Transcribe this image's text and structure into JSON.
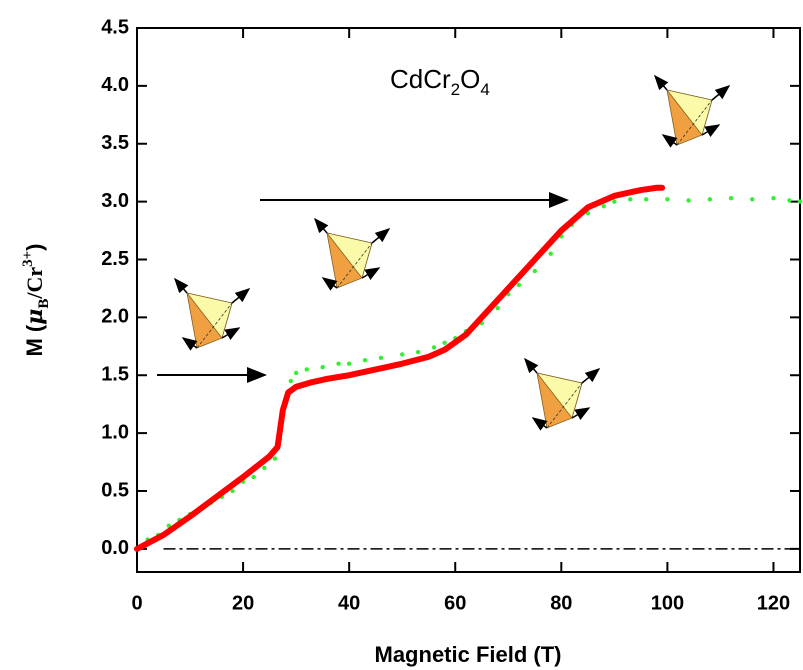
{
  "chart_data": {
    "type": "line",
    "annotation": {
      "parts": [
        "CdCr",
        "2",
        "O",
        "4"
      ]
    },
    "xlabel": "Magnetic Field (T)",
    "ylabel": {
      "parts": [
        "M (",
        "μ",
        "B",
        "/Cr",
        "3+",
        ")"
      ]
    },
    "xlim": [
      0,
      125
    ],
    "ylim": [
      -0.2,
      4.5
    ],
    "xticks": [
      0,
      20,
      40,
      60,
      80,
      100,
      120
    ],
    "yticks": [
      {
        "value": 0,
        "label": "0.0"
      },
      0.5,
      {
        "value": 1,
        "label": "1.0"
      },
      1.5,
      {
        "value": 2,
        "label": "2.0"
      },
      2.5,
      {
        "value": 3,
        "label": "3.0"
      },
      3.5,
      {
        "value": 4,
        "label": "4.0"
      },
      4.5
    ],
    "reference_line": 0,
    "series": [
      {
        "color": "#33ee33",
        "style": "dots",
        "x": [
          0,
          2,
          4,
          6,
          8,
          10,
          12,
          14,
          16,
          18,
          20,
          22,
          24,
          26,
          27,
          28,
          29,
          30,
          32,
          35,
          38,
          40,
          43,
          46,
          50,
          53,
          56,
          58,
          60,
          62,
          65,
          68,
          70,
          72,
          75,
          78,
          80,
          82,
          85,
          88,
          90,
          93,
          96,
          100,
          104,
          108,
          112,
          116,
          120,
          123,
          125
        ],
        "values": [
          0,
          0.08,
          0.12,
          0.2,
          0.25,
          0.3,
          0.35,
          0.4,
          0.45,
          0.5,
          0.58,
          0.62,
          0.7,
          0.78,
          0.95,
          1.25,
          1.45,
          1.52,
          1.55,
          1.57,
          1.6,
          1.6,
          1.63,
          1.65,
          1.68,
          1.7,
          1.74,
          1.78,
          1.82,
          1.88,
          1.95,
          2.08,
          2.2,
          2.28,
          2.4,
          2.55,
          2.7,
          2.8,
          2.9,
          2.96,
          3.0,
          3.02,
          3.02,
          3.02,
          3.01,
          3.02,
          3.03,
          3.02,
          3.03,
          3.01,
          3.0
        ]
      },
      {
        "color": "#ff0000",
        "style": "line",
        "x": [
          0,
          5,
          10,
          15,
          20,
          25,
          26.5,
          27.5,
          28.5,
          30,
          33,
          36,
          40,
          45,
          50,
          55,
          58,
          62,
          65,
          70,
          75,
          80,
          85,
          90,
          95,
          98,
          99
        ],
        "values": [
          0,
          0.12,
          0.28,
          0.45,
          0.62,
          0.8,
          0.88,
          1.2,
          1.35,
          1.4,
          1.44,
          1.47,
          1.5,
          1.55,
          1.6,
          1.66,
          1.72,
          1.85,
          2.0,
          2.25,
          2.5,
          2.75,
          2.95,
          3.05,
          3.1,
          3.12,
          3.12
        ]
      }
    ]
  }
}
